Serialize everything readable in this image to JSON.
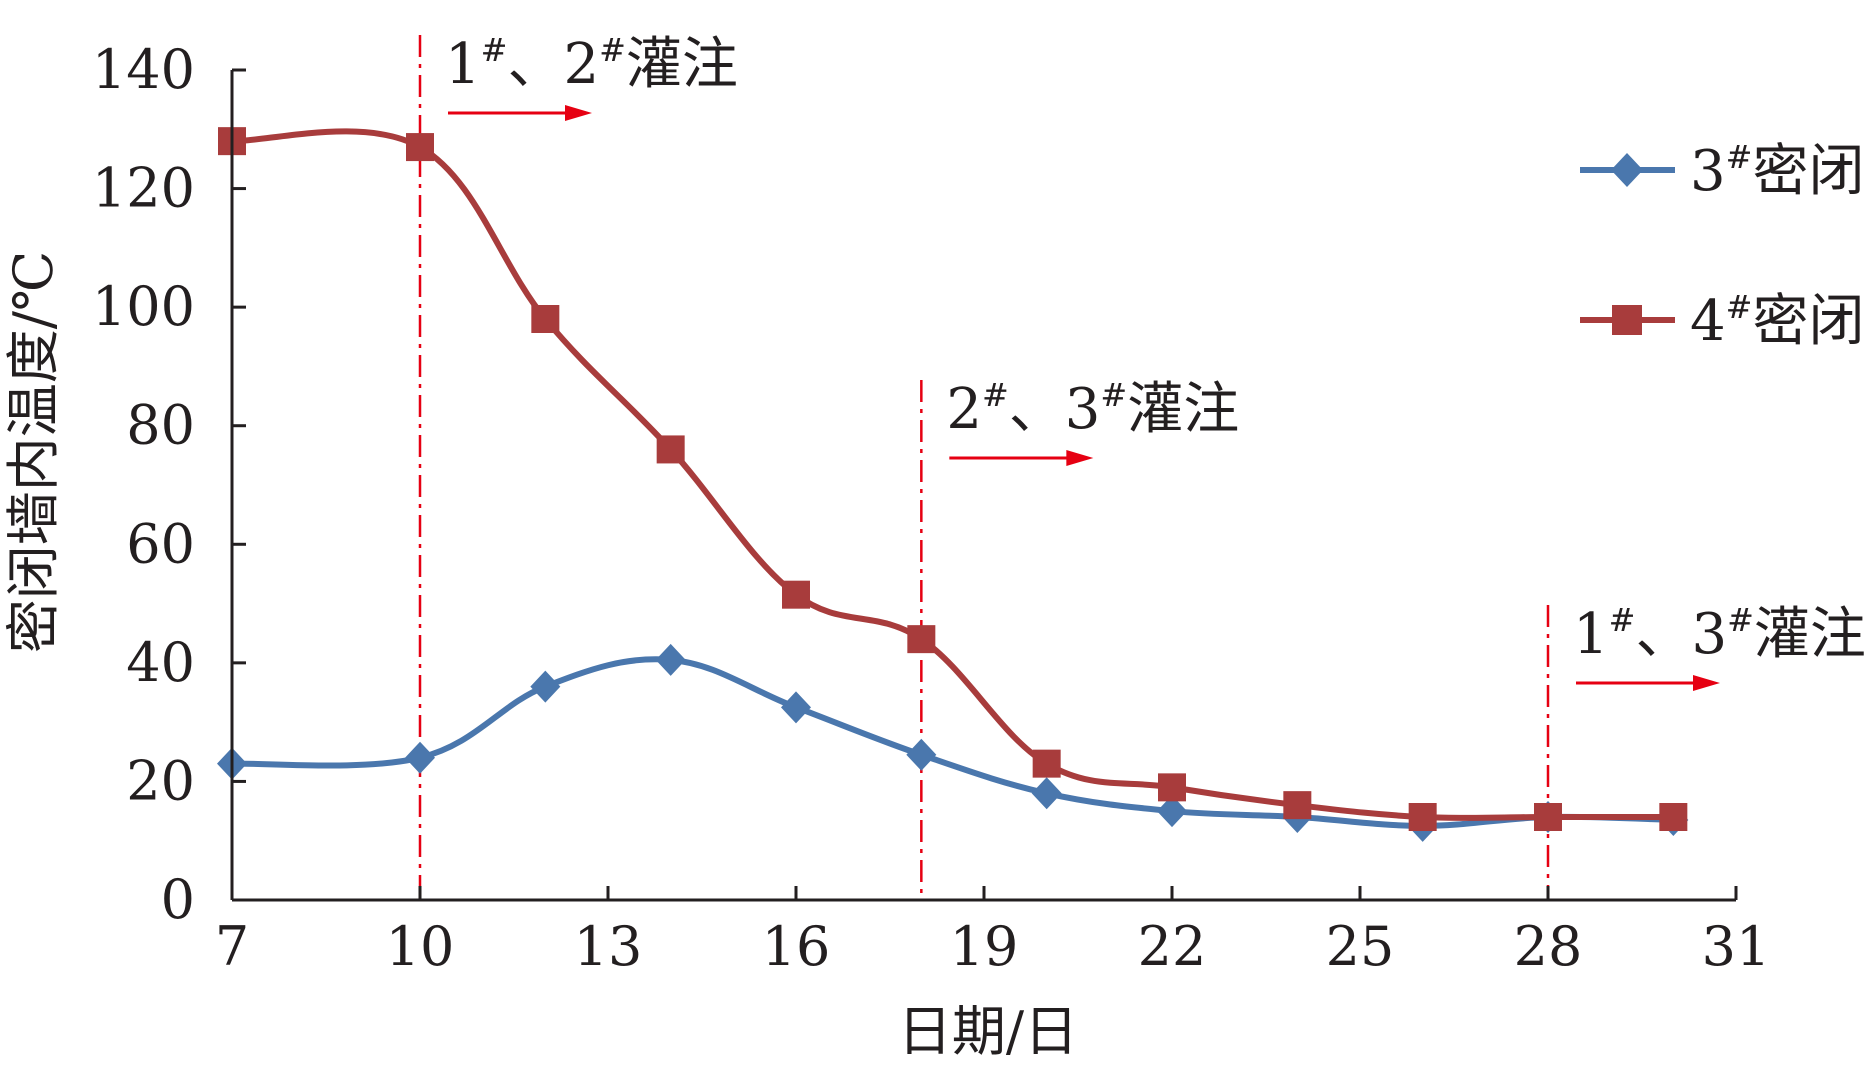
{
  "chart_data": {
    "type": "line",
    "xlabel": "日期/日",
    "ylabel": "密闭墙内温度/℃",
    "xlim": [
      7,
      31
    ],
    "ylim": [
      0,
      140
    ],
    "x_ticks": [
      7,
      10,
      13,
      16,
      19,
      22,
      25,
      28,
      31
    ],
    "y_ticks": [
      0,
      20,
      40,
      60,
      80,
      100,
      120,
      140
    ],
    "grid": false,
    "legend_position": "top-right",
    "series": [
      {
        "name": "3#密闭",
        "marker": "diamond",
        "color": "#4a77ad",
        "x": [
          7,
          10,
          12,
          14,
          16,
          18,
          20,
          22,
          24,
          26,
          28,
          30
        ],
        "y": [
          23,
          24,
          36,
          40.5,
          32.5,
          24.5,
          18,
          15,
          14,
          12.5,
          14,
          13.5
        ]
      },
      {
        "name": "4#密闭",
        "marker": "square",
        "color": "#a83c3c",
        "x": [
          7,
          10,
          12,
          14,
          16,
          18,
          20,
          22,
          24,
          26,
          28,
          30
        ],
        "y": [
          128,
          127,
          98,
          76,
          51.5,
          44,
          23,
          19,
          16,
          14,
          14,
          14
        ]
      }
    ],
    "annotations": [
      {
        "x": 10,
        "num1": "1",
        "num2": "2",
        "sup": "#",
        "sep": "、",
        "text": "灌注"
      },
      {
        "x": 18,
        "num1": "2",
        "num2": "3",
        "sup": "#",
        "sep": "、",
        "text": "灌注"
      },
      {
        "x": 28,
        "num1": "1",
        "num2": "3",
        "sup": "#",
        "sep": "、",
        "text": "灌注"
      }
    ],
    "annotation_color": "#e60012"
  }
}
